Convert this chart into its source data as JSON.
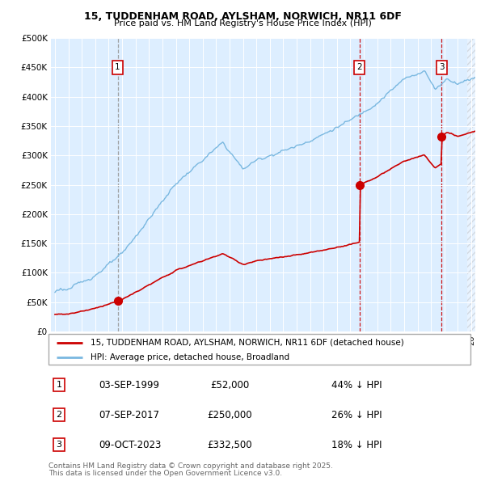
{
  "title1": "15, TUDDENHAM ROAD, AYLSHAM, NORWICH, NR11 6DF",
  "title2": "Price paid vs. HM Land Registry's House Price Index (HPI)",
  "legend_line1": "15, TUDDENHAM ROAD, AYLSHAM, NORWICH, NR11 6DF (detached house)",
  "legend_line2": "HPI: Average price, detached house, Broadland",
  "sale_color": "#cc0000",
  "hpi_color": "#7ab8e0",
  "background_color": "#ddeeff",
  "transactions": [
    {
      "label": "1",
      "date": "03-SEP-1999",
      "price": 52000,
      "note": "44% ↓ HPI",
      "year": 1999.67,
      "line_style": "dashed_gray"
    },
    {
      "label": "2",
      "date": "07-SEP-2017",
      "price": 250000,
      "note": "26% ↓ HPI",
      "year": 2017.67,
      "line_style": "dashed_red"
    },
    {
      "label": "3",
      "date": "09-OCT-2023",
      "price": 332500,
      "note": "18% ↓ HPI",
      "year": 2023.78,
      "line_style": "dashed_red"
    }
  ],
  "ylim": [
    0,
    500000
  ],
  "xlim_start": 1994.7,
  "xlim_end": 2026.3,
  "footer1": "Contains HM Land Registry data © Crown copyright and database right 2025.",
  "footer2": "This data is licensed under the Open Government Licence v3.0.",
  "yticks": [
    0,
    50000,
    100000,
    150000,
    200000,
    250000,
    300000,
    350000,
    400000,
    450000,
    500000
  ],
  "ytick_labels": [
    "£0",
    "£50K",
    "£100K",
    "£150K",
    "£200K",
    "£250K",
    "£300K",
    "£350K",
    "£400K",
    "£450K",
    "£500K"
  ]
}
